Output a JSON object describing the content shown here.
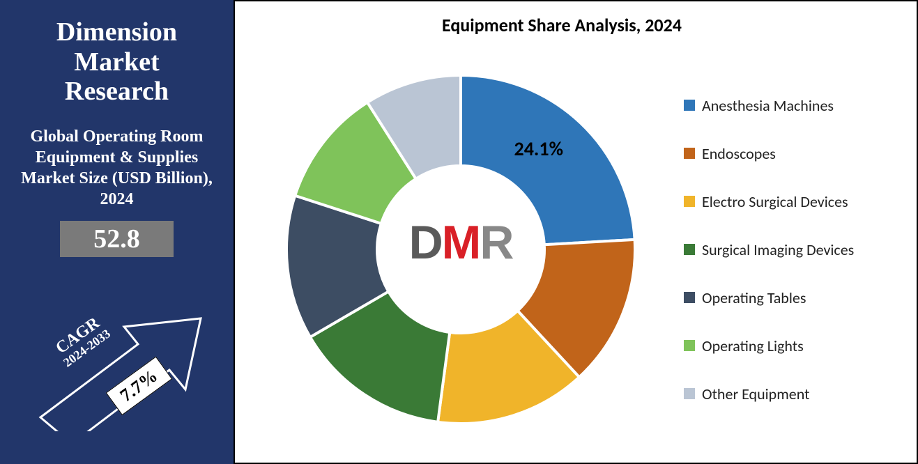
{
  "left": {
    "brand_line1": "Dimension",
    "brand_line2": "Market",
    "brand_line3": "Research",
    "subtitle": "Global Operating Room Equipment & Supplies Market Size (USD Billion), 2024",
    "stat_value": "52.8",
    "cagr_label_l1": "CAGR",
    "cagr_label_l2": "2024-2033",
    "cagr_value": "7.7%",
    "bg_color": "#22366a",
    "stat_box_color": "#7a7a7a",
    "arrow_stroke": "#ffffff"
  },
  "chart": {
    "title": "Equipment Share Analysis, 2024",
    "type": "donut",
    "background_color": "#ffffff",
    "border_color": "#000000",
    "title_fontsize": 26,
    "label_fontsize": 28,
    "legend_fontsize": 22,
    "inner_radius_pct": 48,
    "outer_radius_pct": 100,
    "highlight_slice_index": 0,
    "highlight_label": "24.1%",
    "slices": [
      {
        "label": "Anesthesia Machines",
        "value": 24.1,
        "color": "#2f76b8"
      },
      {
        "label": "Endoscopes",
        "value": 14.0,
        "color": "#c1641a"
      },
      {
        "label": "Electro Surgical Devices",
        "value": 14.0,
        "color": "#f0b42a"
      },
      {
        "label": "Surgical Imaging Devices",
        "value": 14.5,
        "color": "#3a7a36"
      },
      {
        "label": "Operating Tables",
        "value": 13.4,
        "color": "#3d4d63"
      },
      {
        "label": "Operating Lights",
        "value": 11.0,
        "color": "#7fc35a"
      },
      {
        "label": "Other Equipment",
        "value": 9.0,
        "color": "#bac5d4"
      }
    ],
    "center_logo": {
      "d": "D",
      "m": "M",
      "r": "R"
    }
  }
}
